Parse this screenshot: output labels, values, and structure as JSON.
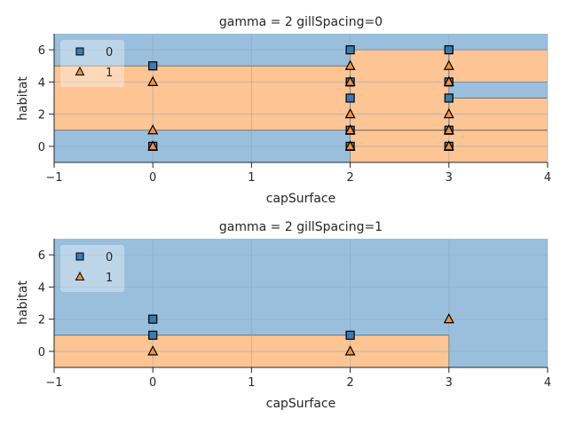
{
  "colors": {
    "class0_region": "#99bfdc",
    "class1_region": "#fec594",
    "class0_marker": "#3b7bb0",
    "class1_marker": "#f0923e",
    "grid": "#8fa9bd",
    "boundary": "#5a5a5a",
    "text": "#262626"
  },
  "chart_data": [
    {
      "type": "scatter",
      "title": "gamma = 2 gillSpacing=0",
      "xlabel": "capSurface",
      "ylabel": "habitat",
      "xlim": [
        -1,
        4
      ],
      "ylim": [
        -1,
        7
      ],
      "xticks": [
        -1,
        0,
        1,
        2,
        3,
        4
      ],
      "yticks": [
        0,
        2,
        4,
        6
      ],
      "grid": true,
      "legend": {
        "placement": "top-left",
        "entries": [
          "0",
          "1"
        ]
      },
      "background_class": "0",
      "regions_class1": [
        {
          "x": [
            -1,
            2
          ],
          "y": [
            1,
            5
          ]
        },
        {
          "x": [
            2,
            4
          ],
          "y": [
            -1,
            1
          ]
        },
        {
          "x": [
            2,
            3
          ],
          "y": [
            1,
            6
          ]
        },
        {
          "x": [
            3,
            4
          ],
          "y": [
            1,
            3
          ]
        },
        {
          "x": [
            3,
            4
          ],
          "y": [
            4,
            6
          ]
        }
      ],
      "series": [
        {
          "name": "0",
          "marker": "square",
          "points": [
            [
              0,
              5
            ],
            [
              0,
              0
            ],
            [
              2,
              6
            ],
            [
              2,
              4
            ],
            [
              2,
              3
            ],
            [
              2,
              1
            ],
            [
              2,
              0
            ],
            [
              3,
              6
            ],
            [
              3,
              4
            ],
            [
              3,
              3
            ],
            [
              3,
              1
            ],
            [
              3,
              0
            ]
          ]
        },
        {
          "name": "1",
          "marker": "triangle",
          "points": [
            [
              0,
              4
            ],
            [
              0,
              1
            ],
            [
              0,
              0
            ],
            [
              2,
              5
            ],
            [
              2,
              4
            ],
            [
              2,
              2
            ],
            [
              2,
              1
            ],
            [
              2,
              0
            ],
            [
              3,
              5
            ],
            [
              3,
              4
            ],
            [
              3,
              2
            ],
            [
              3,
              1
            ],
            [
              3,
              0
            ]
          ]
        }
      ]
    },
    {
      "type": "scatter",
      "title": "gamma = 2 gillSpacing=1",
      "xlabel": "capSurface",
      "ylabel": "habitat",
      "xlim": [
        -1,
        4
      ],
      "ylim": [
        -1,
        7
      ],
      "xticks": [
        -1,
        0,
        1,
        2,
        3,
        4
      ],
      "yticks": [
        0,
        2,
        4,
        6
      ],
      "grid": true,
      "legend": {
        "placement": "top-left",
        "entries": [
          "0",
          "1"
        ]
      },
      "background_class": "0",
      "regions_class1": [
        {
          "x": [
            -1,
            3
          ],
          "y": [
            -1,
            1
          ]
        }
      ],
      "series": [
        {
          "name": "0",
          "marker": "square",
          "points": [
            [
              0,
              2
            ],
            [
              0,
              1
            ],
            [
              2,
              1
            ]
          ]
        },
        {
          "name": "1",
          "marker": "triangle",
          "points": [
            [
              0,
              0
            ],
            [
              2,
              0
            ],
            [
              3,
              2
            ]
          ]
        }
      ]
    }
  ]
}
